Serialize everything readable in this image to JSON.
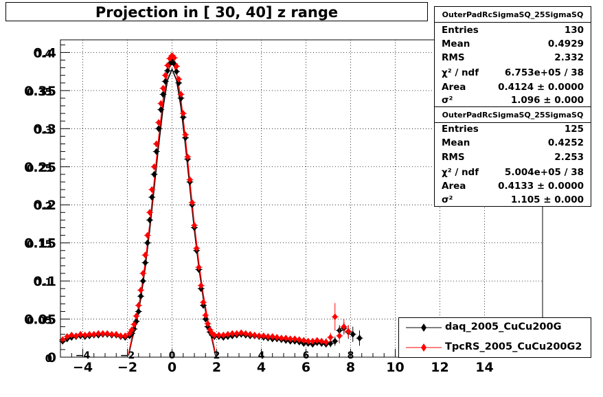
{
  "title": "Projection in [  30,  40] z range",
  "chart_data": {
    "type": "scatter",
    "xlim": [
      -5.0,
      16.6
    ],
    "ylim": [
      0,
      0.4166
    ],
    "grid": true,
    "x_ticks": [
      "−4",
      "−2",
      "0",
      "2",
      "4",
      "6",
      "8",
      "10",
      "12",
      "14"
    ],
    "x_tick_values": [
      -4,
      -2,
      0,
      2,
      4,
      6,
      8,
      10,
      12,
      14
    ],
    "y_ticks": [
      "0",
      "0.05",
      "0.1",
      "0.15",
      "0.2",
      "0.25",
      "0.3",
      "0.35",
      "0.4"
    ],
    "y_tick_values": [
      0,
      0.05,
      0.1,
      0.15,
      0.2,
      0.25,
      0.3,
      0.35,
      0.4
    ],
    "inner_x_labels": [
      "−4",
      "−2",
      "0",
      "2",
      "4",
      "6",
      "8"
    ],
    "inner_x_values": [
      -4,
      -2,
      0,
      2,
      4,
      6,
      8
    ],
    "series": [
      {
        "name": "daq_2005_CuCu200G",
        "color": "#000000",
        "marker": "diamond",
        "x": [
          -4.9,
          -4.7,
          -4.5,
          -4.3,
          -4.1,
          -3.9,
          -3.7,
          -3.5,
          -3.3,
          -3.1,
          -2.9,
          -2.7,
          -2.5,
          -2.3,
          -2.1,
          -1.9,
          -1.8,
          -1.7,
          -1.6,
          -1.5,
          -1.4,
          -1.3,
          -1.2,
          -1.1,
          -1.0,
          -0.9,
          -0.8,
          -0.7,
          -0.6,
          -0.5,
          -0.4,
          -0.3,
          -0.2,
          -0.1,
          0.0,
          0.1,
          0.2,
          0.3,
          0.4,
          0.5,
          0.6,
          0.7,
          0.8,
          0.9,
          1.0,
          1.1,
          1.2,
          1.3,
          1.4,
          1.5,
          1.6,
          1.7,
          1.8,
          1.9,
          2.1,
          2.3,
          2.5,
          2.7,
          2.9,
          3.1,
          3.3,
          3.5,
          3.7,
          3.9,
          4.1,
          4.3,
          4.5,
          4.7,
          4.9,
          5.1,
          5.3,
          5.5,
          5.7,
          5.9,
          6.1,
          6.3,
          6.5,
          6.7,
          6.9,
          7.1,
          7.3,
          7.5,
          7.7,
          7.9,
          8.1,
          8.4
        ],
        "y": [
          0.021,
          0.024,
          0.026,
          0.027,
          0.028,
          0.027,
          0.028,
          0.029,
          0.029,
          0.03,
          0.03,
          0.029,
          0.029,
          0.027,
          0.026,
          0.028,
          0.031,
          0.037,
          0.047,
          0.06,
          0.08,
          0.1,
          0.124,
          0.15,
          0.18,
          0.21,
          0.24,
          0.27,
          0.3,
          0.325,
          0.345,
          0.362,
          0.376,
          0.385,
          0.388,
          0.385,
          0.375,
          0.36,
          0.34,
          0.315,
          0.288,
          0.26,
          0.23,
          0.2,
          0.17,
          0.14,
          0.115,
          0.09,
          0.068,
          0.05,
          0.04,
          0.033,
          0.029,
          0.027,
          0.027,
          0.026,
          0.027,
          0.028,
          0.029,
          0.03,
          0.029,
          0.028,
          0.028,
          0.027,
          0.026,
          0.025,
          0.024,
          0.024,
          0.023,
          0.022,
          0.021,
          0.021,
          0.02,
          0.018,
          0.018,
          0.017,
          0.019,
          0.018,
          0.017,
          0.018,
          0.021,
          0.035,
          0.038,
          0.033,
          0.03,
          0.025
        ],
        "yerr": [
          0.002,
          0.002,
          0.002,
          0.002,
          0.002,
          0.002,
          0.002,
          0.002,
          0.002,
          0.002,
          0.002,
          0.002,
          0.002,
          0.002,
          0.002,
          0.002,
          0.002,
          0.002,
          0.002,
          0.002,
          0.002,
          0.002,
          0.002,
          0.002,
          0.002,
          0.002,
          0.002,
          0.002,
          0.002,
          0.002,
          0.002,
          0.002,
          0.002,
          0.002,
          0.002,
          0.002,
          0.002,
          0.002,
          0.002,
          0.002,
          0.002,
          0.002,
          0.002,
          0.002,
          0.002,
          0.002,
          0.002,
          0.002,
          0.002,
          0.002,
          0.002,
          0.002,
          0.002,
          0.002,
          0.002,
          0.002,
          0.002,
          0.002,
          0.002,
          0.002,
          0.002,
          0.002,
          0.002,
          0.002,
          0.002,
          0.002,
          0.002,
          0.002,
          0.002,
          0.002,
          0.002,
          0.003,
          0.003,
          0.003,
          0.003,
          0.003,
          0.003,
          0.004,
          0.004,
          0.005,
          0.006,
          0.007,
          0.008,
          0.009,
          0.01,
          0.01
        ]
      },
      {
        "name": "TpcRS_2005_CuCu200G2",
        "color": "#ff0000",
        "marker": "diamond",
        "x": [
          -4.9,
          -4.7,
          -4.5,
          -4.3,
          -4.1,
          -3.9,
          -3.7,
          -3.5,
          -3.3,
          -3.1,
          -2.9,
          -2.7,
          -2.5,
          -2.3,
          -2.1,
          -1.9,
          -1.8,
          -1.7,
          -1.6,
          -1.5,
          -1.4,
          -1.3,
          -1.2,
          -1.1,
          -1.0,
          -0.9,
          -0.8,
          -0.7,
          -0.6,
          -0.5,
          -0.4,
          -0.3,
          -0.2,
          -0.1,
          0.0,
          0.1,
          0.2,
          0.3,
          0.4,
          0.5,
          0.6,
          0.7,
          0.8,
          0.9,
          1.0,
          1.1,
          1.2,
          1.3,
          1.4,
          1.5,
          1.6,
          1.7,
          1.8,
          1.9,
          2.1,
          2.3,
          2.5,
          2.7,
          2.9,
          3.1,
          3.3,
          3.5,
          3.7,
          3.9,
          4.1,
          4.3,
          4.5,
          4.7,
          4.9,
          5.1,
          5.3,
          5.5,
          5.7,
          5.9,
          6.1,
          6.3,
          6.5,
          6.7,
          6.9,
          7.1,
          7.3,
          7.5,
          7.7,
          7.9
        ],
        "y": [
          0.023,
          0.027,
          0.029,
          0.028,
          0.03,
          0.029,
          0.03,
          0.03,
          0.031,
          0.031,
          0.031,
          0.03,
          0.03,
          0.028,
          0.028,
          0.031,
          0.036,
          0.043,
          0.054,
          0.068,
          0.088,
          0.11,
          0.134,
          0.16,
          0.19,
          0.22,
          0.25,
          0.28,
          0.308,
          0.333,
          0.353,
          0.37,
          0.383,
          0.392,
          0.396,
          0.393,
          0.382,
          0.365,
          0.345,
          0.32,
          0.292,
          0.263,
          0.233,
          0.203,
          0.173,
          0.143,
          0.118,
          0.094,
          0.072,
          0.055,
          0.044,
          0.036,
          0.031,
          0.029,
          0.029,
          0.029,
          0.03,
          0.031,
          0.031,
          0.032,
          0.031,
          0.03,
          0.029,
          0.028,
          0.028,
          0.027,
          0.027,
          0.026,
          0.025,
          0.025,
          0.024,
          0.024,
          0.023,
          0.022,
          0.021,
          0.021,
          0.022,
          0.021,
          0.02,
          0.026,
          0.053,
          0.028,
          0.04,
          0.034
        ],
        "yerr": [
          0.002,
          0.002,
          0.002,
          0.002,
          0.002,
          0.002,
          0.002,
          0.002,
          0.002,
          0.002,
          0.002,
          0.002,
          0.002,
          0.002,
          0.002,
          0.002,
          0.002,
          0.002,
          0.002,
          0.002,
          0.002,
          0.002,
          0.002,
          0.002,
          0.002,
          0.002,
          0.002,
          0.002,
          0.002,
          0.002,
          0.002,
          0.002,
          0.002,
          0.002,
          0.002,
          0.002,
          0.002,
          0.002,
          0.002,
          0.002,
          0.002,
          0.002,
          0.002,
          0.002,
          0.002,
          0.002,
          0.002,
          0.002,
          0.002,
          0.002,
          0.002,
          0.002,
          0.002,
          0.002,
          0.002,
          0.002,
          0.002,
          0.002,
          0.002,
          0.002,
          0.002,
          0.002,
          0.002,
          0.002,
          0.002,
          0.002,
          0.002,
          0.002,
          0.002,
          0.002,
          0.002,
          0.003,
          0.003,
          0.003,
          0.003,
          0.003,
          0.003,
          0.004,
          0.005,
          0.006,
          0.018,
          0.01,
          0.01,
          0.008
        ]
      }
    ],
    "fit_curves": [
      {
        "color": "#000000",
        "x": [
          -1.95,
          -1.8,
          -1.6,
          -1.4,
          -1.2,
          -1.0,
          -0.8,
          -0.6,
          -0.4,
          -0.2,
          0.0,
          0.2,
          0.4,
          0.6,
          0.8,
          1.0,
          1.2,
          1.4,
          1.6,
          1.8,
          1.95
        ],
        "y": [
          0.002,
          0.022,
          0.045,
          0.077,
          0.118,
          0.167,
          0.222,
          0.278,
          0.328,
          0.364,
          0.378,
          0.364,
          0.328,
          0.278,
          0.222,
          0.167,
          0.118,
          0.077,
          0.045,
          0.022,
          0.002
        ]
      },
      {
        "color": "#ff0000",
        "x": [
          -1.95,
          -1.8,
          -1.6,
          -1.4,
          -1.2,
          -1.0,
          -0.8,
          -0.6,
          -0.4,
          -0.2,
          0.0,
          0.2,
          0.4,
          0.6,
          0.8,
          1.0,
          1.2,
          1.4,
          1.6,
          1.8,
          1.95
        ],
        "y": [
          0.004,
          0.025,
          0.049,
          0.082,
          0.124,
          0.174,
          0.23,
          0.287,
          0.338,
          0.374,
          0.388,
          0.374,
          0.338,
          0.287,
          0.23,
          0.174,
          0.124,
          0.082,
          0.049,
          0.025,
          0.004
        ]
      }
    ]
  },
  "stats_boxes": [
    {
      "header": "OuterPadRcSigmaSQ_25SigmaSQ",
      "rows": [
        {
          "key": "Entries",
          "value": "130"
        },
        {
          "key": "Mean",
          "value": "0.4929"
        },
        {
          "key": "RMS",
          "value": "2.332"
        },
        {
          "key": "χ² / ndf",
          "value": "6.753e+05 / 38"
        },
        {
          "key": "Area",
          "value": "0.4124 ± 0.0000"
        },
        {
          "key": "σ²",
          "value": "1.096 ± 0.000"
        }
      ]
    },
    {
      "header": "OuterPadRcSigmaSQ_25SigmaSQ",
      "rows": [
        {
          "key": "Entries",
          "value": "125"
        },
        {
          "key": "Mean",
          "value": "0.4252"
        },
        {
          "key": "RMS",
          "value": "2.253"
        },
        {
          "key": "χ² / ndf",
          "value": "5.004e+05 / 38"
        },
        {
          "key": "Area",
          "value": "0.4133 ± 0.0000"
        },
        {
          "key": "σ²",
          "value": "1.105 ± 0.000"
        }
      ]
    }
  ],
  "legend": [
    {
      "label": "daq_2005_CuCu200G",
      "color": "#000000"
    },
    {
      "label": "TpcRS_2005_CuCu200G2",
      "color": "#ff0000"
    }
  ]
}
